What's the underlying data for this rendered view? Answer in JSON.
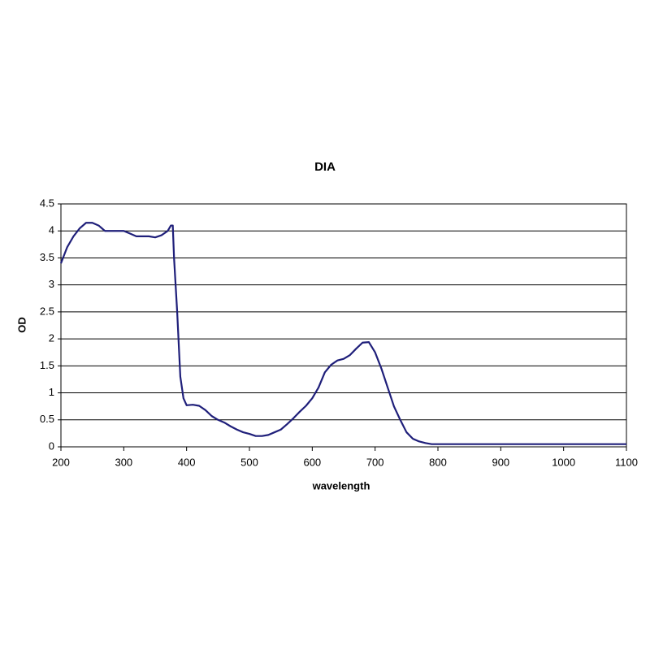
{
  "chart_data": {
    "type": "line",
    "title": "DIA",
    "x_label": "wavelength",
    "y_label": "OD",
    "x": [
      200,
      210,
      220,
      230,
      240,
      250,
      260,
      270,
      280,
      300,
      310,
      320,
      340,
      350,
      360,
      370,
      375,
      378,
      380,
      385,
      390,
      395,
      400,
      410,
      420,
      430,
      440,
      450,
      460,
      470,
      480,
      490,
      500,
      510,
      520,
      530,
      540,
      550,
      560,
      570,
      580,
      590,
      600,
      610,
      620,
      630,
      640,
      650,
      660,
      670,
      680,
      690,
      700,
      710,
      720,
      730,
      740,
      750,
      760,
      770,
      780,
      790,
      800,
      1100
    ],
    "series": [
      {
        "name": "DIA",
        "color": "#1f1f7a",
        "values": [
          3.4,
          3.7,
          3.9,
          4.05,
          4.15,
          4.15,
          4.1,
          4.0,
          4.0,
          4.0,
          3.95,
          3.9,
          3.9,
          3.88,
          3.92,
          4.0,
          4.1,
          4.1,
          3.5,
          2.5,
          1.3,
          0.9,
          0.77,
          0.78,
          0.76,
          0.68,
          0.57,
          0.5,
          0.45,
          0.38,
          0.32,
          0.27,
          0.24,
          0.2,
          0.2,
          0.22,
          0.27,
          0.32,
          0.42,
          0.53,
          0.65,
          0.76,
          0.9,
          1.1,
          1.38,
          1.52,
          1.6,
          1.63,
          1.7,
          1.82,
          1.93,
          1.94,
          1.75,
          1.45,
          1.1,
          0.75,
          0.5,
          0.27,
          0.15,
          0.1,
          0.07,
          0.05,
          0.05,
          0.05
        ]
      }
    ],
    "xlim": [
      200,
      1100
    ],
    "xticks": [
      200,
      300,
      400,
      500,
      600,
      700,
      800,
      900,
      1000,
      1100
    ],
    "ylim": [
      0,
      4.5
    ],
    "yticks": [
      0,
      0.5,
      1,
      1.5,
      2,
      2.5,
      3,
      3.5,
      4,
      4.5
    ],
    "grid": true
  }
}
